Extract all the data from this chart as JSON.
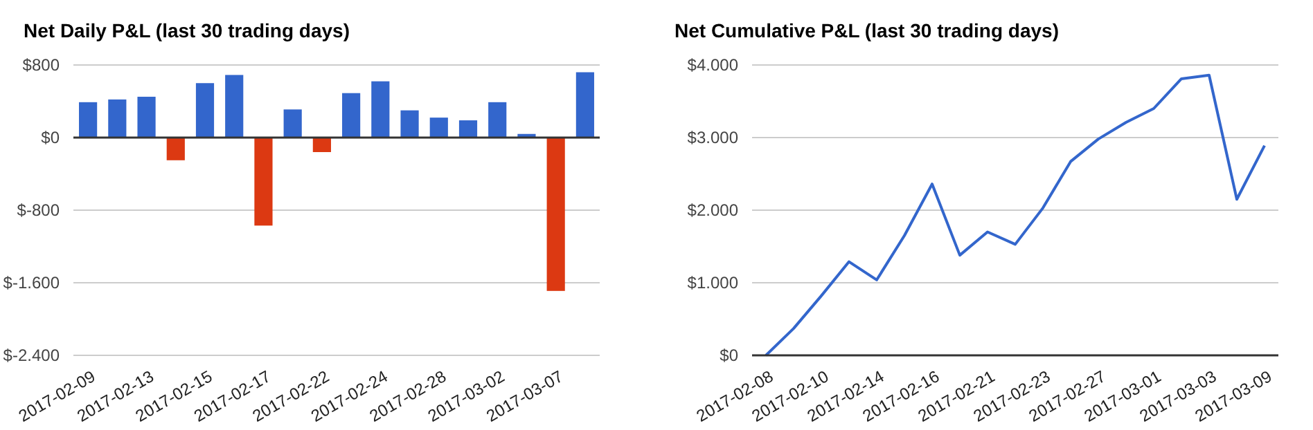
{
  "chart_data": [
    {
      "type": "bar",
      "title": "Net Daily P&L (last 30 trading days)",
      "categories": [
        "2017-02-09",
        null,
        "2017-02-13",
        null,
        "2017-02-15",
        null,
        "2017-02-17",
        null,
        "2017-02-22",
        null,
        "2017-02-24",
        null,
        "2017-02-28",
        null,
        "2017-03-02",
        null,
        "2017-03-07",
        null
      ],
      "values": [
        390,
        420,
        450,
        -250,
        600,
        690,
        -970,
        310,
        -160,
        490,
        620,
        300,
        220,
        190,
        390,
        40,
        -1690,
        720
      ],
      "colors": [
        "#3366cc",
        "#3366cc",
        "#3366cc",
        "#dc3912",
        "#3366cc",
        "#3366cc",
        "#dc3912",
        "#3366cc",
        "#dc3912",
        "#3366cc",
        "#3366cc",
        "#3366cc",
        "#3366cc",
        "#3366cc",
        "#3366cc",
        "#3366cc",
        "#dc3912",
        "#3366cc"
      ],
      "ylim": [
        -2400,
        800
      ],
      "yticks": [
        {
          "value": -2400,
          "label": "$-2.400"
        },
        {
          "value": -1600,
          "label": "$-1.600"
        },
        {
          "value": -800,
          "label": "$-800"
        },
        {
          "value": 0,
          "label": "$0"
        },
        {
          "value": 800,
          "label": "$800"
        }
      ],
      "grid": "y"
    },
    {
      "type": "line",
      "title": "Net Cumulative P&L (last 30 trading days)",
      "categories": [
        "2017-02-08",
        null,
        "2017-02-10",
        null,
        "2017-02-14",
        null,
        "2017-02-16",
        null,
        "2017-02-21",
        null,
        "2017-02-23",
        null,
        "2017-02-27",
        null,
        "2017-03-01",
        null,
        "2017-03-03",
        null,
        "2017-03-09"
      ],
      "series": [
        {
          "color": "#3366cc",
          "values": [
            0,
            370,
            820,
            1290,
            1040,
            1650,
            2360,
            1380,
            1700,
            1530,
            2030,
            2670,
            2980,
            3210,
            3400,
            3810,
            3860,
            2150,
            2890
          ]
        }
      ],
      "ylim": [
        0,
        4000
      ],
      "yticks": [
        {
          "value": 0,
          "label": "$0"
        },
        {
          "value": 1000,
          "label": "$1.000"
        },
        {
          "value": 2000,
          "label": "$2.000"
        },
        {
          "value": 3000,
          "label": "$3.000"
        },
        {
          "value": 4000,
          "label": "$4.000"
        }
      ],
      "grid": "y",
      "marker": "none",
      "line_style": "solid"
    }
  ]
}
